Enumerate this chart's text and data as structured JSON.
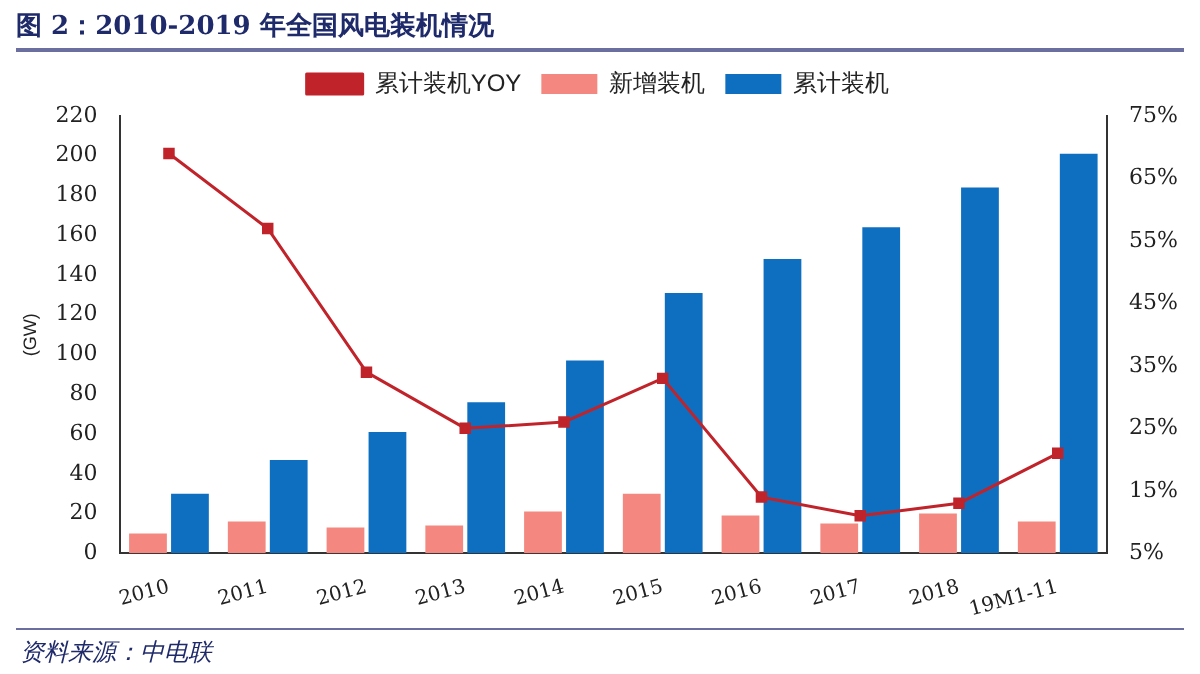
{
  "chart_data": {
    "type": "bar",
    "title": "图 2：2010-2019 年全国风电装机情况",
    "ylabel": "(GW)",
    "categories": [
      "2010",
      "2011",
      "2012",
      "2013",
      "2014",
      "2015",
      "2016",
      "2017",
      "2018",
      "19M1-11"
    ],
    "series": [
      {
        "name": "新增装机",
        "color": "#f4877f",
        "values": [
          10,
          16,
          13,
          14,
          21,
          30,
          19,
          15,
          20,
          16
        ]
      },
      {
        "name": "累计装机",
        "color": "#0e6fc1",
        "values": [
          30,
          47,
          61,
          76,
          97,
          131,
          148,
          164,
          184,
          201
        ]
      },
      {
        "name": "累计装机YOY",
        "type": "line",
        "axis": "y2",
        "color": "#c0232a",
        "marker": "square",
        "values": [
          69,
          57,
          34,
          25,
          26,
          33,
          14,
          11,
          13,
          21
        ]
      }
    ],
    "ylim": [
      0,
      220
    ],
    "yticks": [
      0,
      20,
      40,
      60,
      80,
      100,
      120,
      140,
      160,
      180,
      200,
      220
    ],
    "y2lim": [
      5,
      75
    ],
    "y2ticks": [
      {
        "value": 5,
        "label": "5%"
      },
      {
        "value": 15,
        "label": "15%"
      },
      {
        "value": 25,
        "label": "25%"
      },
      {
        "value": 35,
        "label": "35%"
      },
      {
        "value": 45,
        "label": "45%"
      },
      {
        "value": 55,
        "label": "55%"
      },
      {
        "value": 65,
        "label": "65%"
      },
      {
        "value": 75,
        "label": "75%"
      }
    ],
    "legend": "top",
    "grid": false,
    "annotations": [
      "资料来源：中电联"
    ]
  }
}
